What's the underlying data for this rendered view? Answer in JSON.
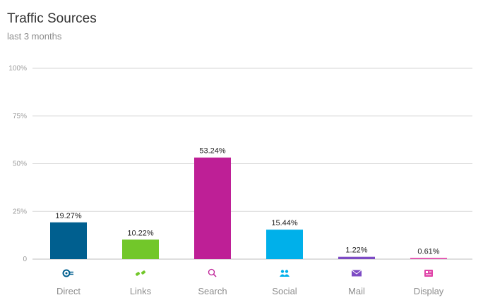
{
  "header": {
    "title": "Traffic Sources",
    "subtitle": "last 3 months"
  },
  "chart_data": {
    "type": "bar",
    "title": "Traffic Sources",
    "subtitle": "last 3 months",
    "categories": [
      "Direct",
      "Links",
      "Search",
      "Social",
      "Mail",
      "Display"
    ],
    "values": [
      19.27,
      10.22,
      53.24,
      15.44,
      1.22,
      0.61
    ],
    "value_labels": [
      "19.27%",
      "10.22%",
      "53.24%",
      "15.44%",
      "1.22%",
      "0.61%"
    ],
    "colors": [
      "#005f8f",
      "#72c72a",
      "#be1f96",
      "#00b0ea",
      "#7d4bc4",
      "#e044a8"
    ],
    "icons": [
      "direct-icon",
      "links-icon",
      "search-icon",
      "social-icon",
      "mail-icon",
      "display-icon"
    ],
    "ylim": [
      0,
      100
    ],
    "yticks": [
      0,
      25,
      50,
      75,
      100
    ],
    "ytick_labels": [
      "0",
      "25%",
      "50%",
      "75%",
      "100%"
    ],
    "grid": true,
    "legend": "none"
  }
}
